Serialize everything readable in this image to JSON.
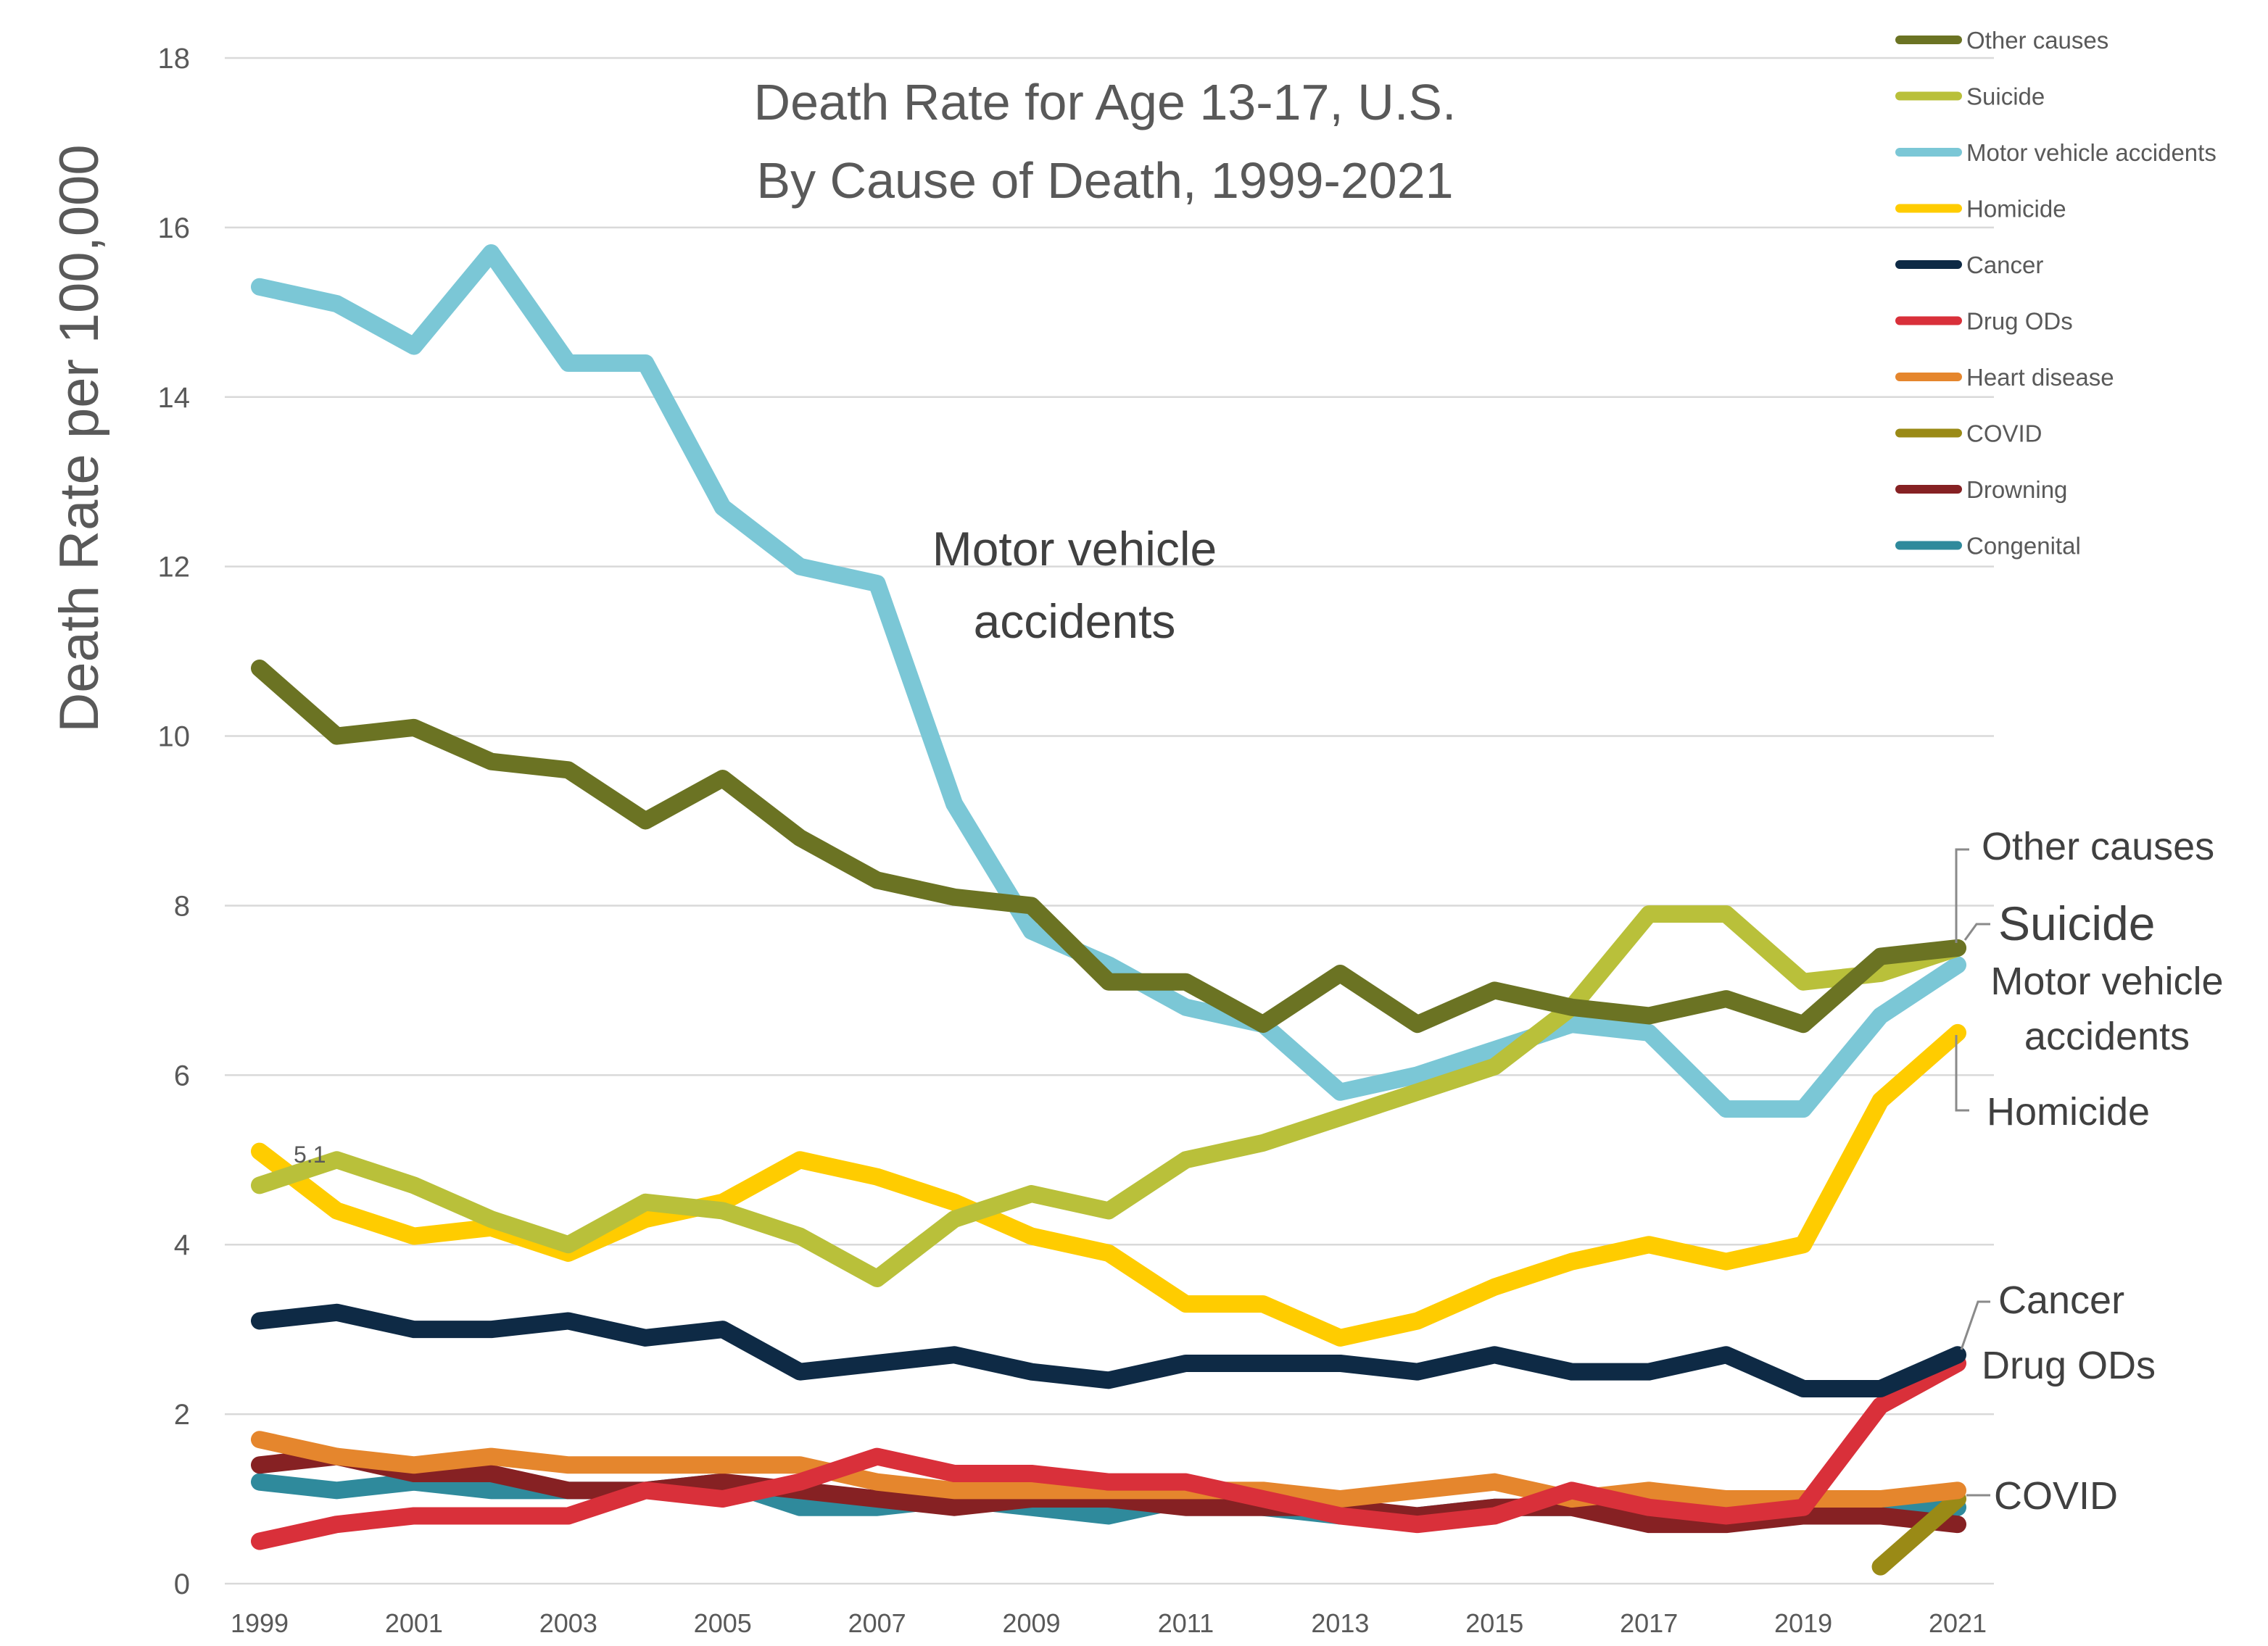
{
  "chart_data": {
    "type": "line",
    "title_line1": "Death Rate for Age 13-17, U.S.",
    "title_line2": "By Cause of Death, 1999-2021",
    "ylabel": "Death Rate per 100,000",
    "xlabel": "",
    "ylim": [
      0,
      18
    ],
    "yticks": [
      "0",
      "2",
      "4",
      "6",
      "8",
      "10",
      "12",
      "14",
      "16",
      "18"
    ],
    "xticks": [
      "1999",
      "2001",
      "2003",
      "2005",
      "2007",
      "2009",
      "2011",
      "2013",
      "2015",
      "2017",
      "2019",
      "2021"
    ],
    "x": [
      1999,
      2000,
      2001,
      2002,
      2003,
      2004,
      2005,
      2006,
      2007,
      2008,
      2009,
      2010,
      2011,
      2012,
      2013,
      2014,
      2015,
      2016,
      2017,
      2018,
      2019,
      2020,
      2021
    ],
    "grid": true,
    "legend_position": "top-right",
    "series": [
      {
        "name": "Other causes",
        "color": "#6b7323",
        "values": [
          10.8,
          10.0,
          10.1,
          9.7,
          9.6,
          9.0,
          9.5,
          8.8,
          8.3,
          8.1,
          8.0,
          7.1,
          7.1,
          6.6,
          7.2,
          6.6,
          7.0,
          6.8,
          6.7,
          6.9,
          6.6,
          7.4,
          7.5
        ]
      },
      {
        "name": "Suicide",
        "color": "#b9c03a",
        "values": [
          4.7,
          5.0,
          4.7,
          4.3,
          4.0,
          4.5,
          4.4,
          4.1,
          3.6,
          4.3,
          4.6,
          4.4,
          5.0,
          5.2,
          5.5,
          5.8,
          6.1,
          6.8,
          7.9,
          7.9,
          7.1,
          7.2,
          7.5
        ]
      },
      {
        "name": "Motor vehicle accidents",
        "color": "#7bc7d6",
        "values": [
          15.3,
          15.1,
          14.6,
          15.7,
          14.4,
          14.4,
          12.7,
          12.0,
          11.8,
          9.2,
          7.7,
          7.3,
          6.8,
          6.6,
          5.8,
          6.0,
          6.3,
          6.6,
          6.5,
          5.6,
          5.6,
          6.7,
          7.3
        ]
      },
      {
        "name": "Homicide",
        "color": "#ffcc00",
        "values": [
          5.1,
          4.4,
          4.1,
          4.2,
          3.9,
          4.3,
          4.5,
          5.0,
          4.8,
          4.5,
          4.1,
          3.9,
          3.3,
          3.3,
          2.9,
          3.1,
          3.5,
          3.8,
          4.0,
          3.8,
          4.0,
          5.7,
          6.5
        ]
      },
      {
        "name": "Cancer",
        "color": "#0e2a45",
        "values": [
          3.1,
          3.2,
          3.0,
          3.0,
          3.1,
          2.9,
          3.0,
          2.5,
          2.6,
          2.7,
          2.5,
          2.4,
          2.6,
          2.6,
          2.6,
          2.5,
          2.7,
          2.5,
          2.5,
          2.7,
          2.3,
          2.3,
          2.7
        ]
      },
      {
        "name": "Drug ODs",
        "color": "#d9303a",
        "values": [
          0.5,
          0.7,
          0.8,
          0.8,
          0.8,
          1.1,
          1.0,
          1.2,
          1.5,
          1.3,
          1.3,
          1.2,
          1.2,
          1.0,
          0.8,
          0.7,
          0.8,
          1.1,
          0.9,
          0.8,
          0.9,
          2.1,
          2.6
        ]
      },
      {
        "name": "Heart disease",
        "color": "#e5862d",
        "values": [
          1.7,
          1.5,
          1.4,
          1.5,
          1.4,
          1.4,
          1.4,
          1.4,
          1.2,
          1.1,
          1.1,
          1.1,
          1.1,
          1.1,
          1.0,
          1.1,
          1.2,
          1.0,
          1.1,
          1.0,
          1.0,
          1.0,
          1.1
        ]
      },
      {
        "name": "COVID",
        "color": "#9a8a16",
        "values": [
          null,
          null,
          null,
          null,
          null,
          null,
          null,
          null,
          null,
          null,
          null,
          null,
          null,
          null,
          null,
          null,
          null,
          null,
          null,
          null,
          null,
          0.2,
          1.0
        ]
      },
      {
        "name": "Drowning",
        "color": "#862123",
        "values": [
          1.4,
          1.5,
          1.3,
          1.3,
          1.1,
          1.1,
          1.2,
          1.1,
          1.0,
          0.9,
          1.0,
          1.0,
          0.9,
          0.9,
          0.9,
          0.8,
          0.9,
          0.9,
          0.7,
          0.7,
          0.8,
          0.8,
          0.7
        ]
      },
      {
        "name": "Congenital",
        "color": "#2f8a9c",
        "values": [
          1.2,
          1.1,
          1.2,
          1.1,
          1.1,
          1.1,
          1.2,
          0.9,
          0.9,
          1.0,
          0.9,
          0.8,
          1.0,
          0.9,
          0.8,
          0.8,
          0.9,
          0.9,
          0.8,
          0.8,
          0.9,
          0.9,
          0.9
        ]
      }
    ],
    "data_label": {
      "text": "5.1"
    },
    "annotations": {
      "mva_mid_line1": "Motor vehicle",
      "mva_mid_line2": "accidents",
      "other_causes": "Other causes",
      "suicide": "Suicide",
      "mva_end_line1": "Motor vehicle",
      "mva_end_line2": "accidents",
      "homicide": "Homicide",
      "cancer": "Cancer",
      "drug_ods": "Drug ODs",
      "covid": "COVID"
    }
  }
}
